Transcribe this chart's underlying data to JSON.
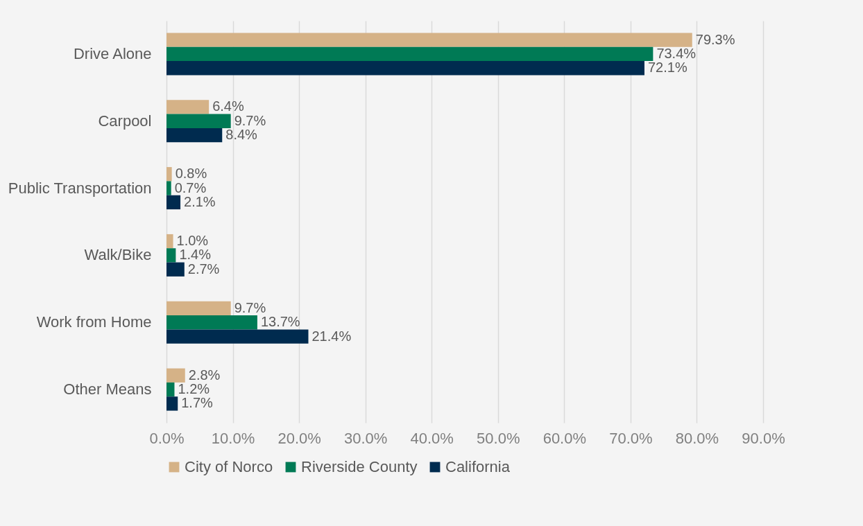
{
  "chart_data": {
    "type": "bar",
    "orientation": "horizontal",
    "categories": [
      "Drive Alone",
      "Carpool",
      "Public Transportation",
      "Walk/Bike",
      "Work from Home",
      "Other Means"
    ],
    "series": [
      {
        "name": "City of Norco",
        "color": "#d5b287",
        "values": [
          79.3,
          6.4,
          0.8,
          1.0,
          9.7,
          2.8
        ],
        "value_labels": [
          "79.3%",
          "6.4%",
          "0.8%",
          "1.0%",
          "9.7%",
          "2.8%"
        ]
      },
      {
        "name": "Riverside County",
        "color": "#007a55",
        "values": [
          73.4,
          9.7,
          0.7,
          1.4,
          13.7,
          1.2
        ],
        "value_labels": [
          "73.4%",
          "9.7%",
          "0.7%",
          "1.4%",
          "13.7%",
          "1.2%"
        ]
      },
      {
        "name": "California",
        "color": "#002b4f",
        "values": [
          72.1,
          8.4,
          2.1,
          2.7,
          21.4,
          1.7
        ],
        "value_labels": [
          "72.1%",
          "8.4%",
          "2.1%",
          "2.7%",
          "21.4%",
          "1.7%"
        ]
      }
    ],
    "xlim": [
      0,
      90
    ],
    "xticks": [
      {
        "value": 0,
        "label": "0.0%"
      },
      {
        "value": 10,
        "label": "10.0%"
      },
      {
        "value": 20,
        "label": "20.0%"
      },
      {
        "value": 30,
        "label": "30.0%"
      },
      {
        "value": 40,
        "label": "40.0%"
      },
      {
        "value": 50,
        "label": "50.0%"
      },
      {
        "value": 60,
        "label": "60.0%"
      },
      {
        "value": 70,
        "label": "70.0%"
      },
      {
        "value": 80,
        "label": "80.0%"
      },
      {
        "value": 90,
        "label": "90.0%"
      }
    ],
    "grid": "x",
    "legend": "bottom"
  }
}
